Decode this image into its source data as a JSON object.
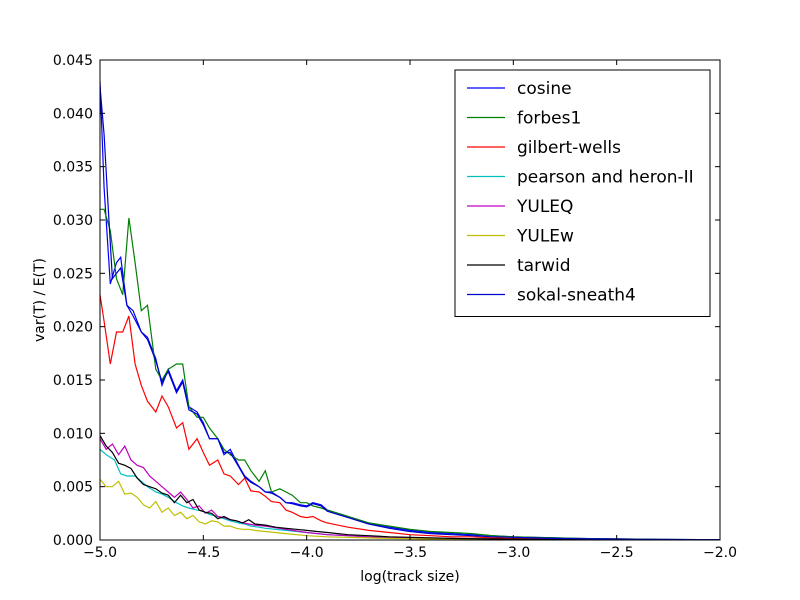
{
  "chart_data": {
    "type": "line",
    "title": "",
    "xlabel": "log(track size)",
    "ylabel": "var(T) / E(T)",
    "xlim": [
      -5.0,
      -2.0
    ],
    "ylim": [
      0.0,
      0.045
    ],
    "xticks": [
      -5.0,
      -4.5,
      -4.0,
      -3.5,
      -3.0,
      -2.5,
      -2.0
    ],
    "xtick_labels": [
      "−5.0",
      "−4.5",
      "−4.0",
      "−3.5",
      "−3.0",
      "−2.5",
      "−2.0"
    ],
    "yticks": [
      0.0,
      0.005,
      0.01,
      0.015,
      0.02,
      0.025,
      0.03,
      0.035,
      0.04,
      0.045
    ],
    "ytick_labels": [
      "0.000",
      "0.005",
      "0.010",
      "0.015",
      "0.020",
      "0.025",
      "0.030",
      "0.035",
      "0.040",
      "0.045"
    ],
    "grid": false,
    "legend_position": "top-right",
    "series": [
      {
        "name": "cosine",
        "color": "#0000ff",
        "x": [
          -5.0,
          -4.98,
          -4.95,
          -4.92,
          -4.9,
          -4.87,
          -4.84,
          -4.8,
          -4.77,
          -4.73,
          -4.7,
          -4.67,
          -4.63,
          -4.6,
          -4.57,
          -4.53,
          -4.5,
          -4.47,
          -4.43,
          -4.4,
          -4.37,
          -4.33,
          -4.3,
          -4.27,
          -4.23,
          -4.2,
          -4.17,
          -4.13,
          -4.1,
          -4.07,
          -4.03,
          -4.0,
          -3.97,
          -3.93,
          -3.9,
          -3.8,
          -3.7,
          -3.6,
          -3.5,
          -3.4,
          -3.3,
          -3.2,
          -3.1,
          -3.0,
          -2.9,
          -2.8,
          -2.7,
          -2.6,
          -2.5,
          -2.4,
          -2.3,
          -2.2,
          -2.1,
          -2.0
        ],
        "y": [
          0.043,
          0.033,
          0.024,
          0.026,
          0.0265,
          0.022,
          0.021,
          0.0195,
          0.019,
          0.017,
          0.0145,
          0.016,
          0.014,
          0.015,
          0.0125,
          0.012,
          0.011,
          0.0095,
          0.0095,
          0.008,
          0.0085,
          0.007,
          0.006,
          0.0055,
          0.005,
          0.0045,
          0.0045,
          0.004,
          0.0035,
          0.0035,
          0.0033,
          0.0032,
          0.0035,
          0.0033,
          0.0028,
          0.0022,
          0.0016,
          0.0012,
          0.0009,
          0.0007,
          0.0006,
          0.0005,
          0.0004,
          0.0003,
          0.00025,
          0.0002,
          0.00015,
          0.00012,
          0.0001,
          8e-05,
          6e-05,
          5e-05,
          4e-05,
          3e-05
        ]
      },
      {
        "name": "forbes1",
        "color": "#008000",
        "x": [
          -5.0,
          -4.98,
          -4.95,
          -4.92,
          -4.89,
          -4.86,
          -4.83,
          -4.8,
          -4.77,
          -4.73,
          -4.7,
          -4.67,
          -4.63,
          -4.6,
          -4.57,
          -4.53,
          -4.5,
          -4.47,
          -4.43,
          -4.4,
          -4.37,
          -4.33,
          -4.3,
          -4.27,
          -4.23,
          -4.2,
          -4.17,
          -4.13,
          -4.1,
          -4.07,
          -4.03,
          -4.0,
          -3.97,
          -3.93,
          -3.9,
          -3.8,
          -3.7,
          -3.6,
          -3.5,
          -3.4,
          -3.3,
          -3.2,
          -3.1,
          -3.0,
          -2.9,
          -2.8,
          -2.7,
          -2.6,
          -2.5,
          -2.4,
          -2.3,
          -2.2,
          -2.1,
          -2.0
        ],
        "y": [
          0.031,
          0.031,
          0.029,
          0.0245,
          0.023,
          0.0302,
          0.026,
          0.0215,
          0.022,
          0.016,
          0.015,
          0.016,
          0.0165,
          0.0165,
          0.0125,
          0.0115,
          0.0115,
          0.0105,
          0.0095,
          0.0085,
          0.008,
          0.0075,
          0.0075,
          0.0065,
          0.0055,
          0.0065,
          0.0045,
          0.0048,
          0.0045,
          0.0042,
          0.0035,
          0.0035,
          0.0032,
          0.003,
          0.0028,
          0.0022,
          0.0016,
          0.0013,
          0.001,
          0.0008,
          0.0007,
          0.0006,
          0.0004,
          0.0003,
          0.00025,
          0.0002,
          0.00015,
          0.00012,
          0.0001,
          8e-05,
          6e-05,
          5e-05,
          4e-05,
          3e-05
        ]
      },
      {
        "name": "gilbert-wells",
        "color": "#ff0000",
        "x": [
          -5.0,
          -4.98,
          -4.95,
          -4.92,
          -4.89,
          -4.86,
          -4.83,
          -4.8,
          -4.77,
          -4.73,
          -4.7,
          -4.67,
          -4.63,
          -4.6,
          -4.57,
          -4.53,
          -4.5,
          -4.47,
          -4.43,
          -4.4,
          -4.37,
          -4.33,
          -4.3,
          -4.27,
          -4.23,
          -4.2,
          -4.17,
          -4.13,
          -4.1,
          -4.07,
          -4.03,
          -4.0,
          -3.97,
          -3.93,
          -3.9,
          -3.8,
          -3.7,
          -3.6,
          -3.5,
          -3.4,
          -3.3,
          -3.2,
          -3.1,
          -3.0,
          -2.9,
          -2.8,
          -2.7,
          -2.6,
          -2.5,
          -2.4,
          -2.3,
          -2.2,
          -2.1,
          -2.0
        ],
        "y": [
          0.023,
          0.0205,
          0.0165,
          0.0195,
          0.0195,
          0.021,
          0.0165,
          0.0145,
          0.013,
          0.012,
          0.0135,
          0.0125,
          0.0105,
          0.011,
          0.0085,
          0.0095,
          0.0082,
          0.007,
          0.0075,
          0.0062,
          0.006,
          0.0052,
          0.0058,
          0.0046,
          0.0045,
          0.0041,
          0.0036,
          0.0035,
          0.0028,
          0.0026,
          0.0022,
          0.0021,
          0.0022,
          0.0018,
          0.0016,
          0.0012,
          0.0009,
          0.0007,
          0.0005,
          0.0004,
          0.0003,
          0.0003,
          0.0002,
          0.00015,
          0.00012,
          0.0001,
          8e-05,
          6e-05,
          5e-05,
          4e-05,
          3e-05,
          2e-05,
          2e-05,
          1e-05
        ]
      },
      {
        "name": "pearson and heron-II",
        "color": "#00bfbf",
        "x": [
          -5.0,
          -4.97,
          -4.93,
          -4.9,
          -4.87,
          -4.83,
          -4.8,
          -4.77,
          -4.73,
          -4.7,
          -4.67,
          -4.63,
          -4.6,
          -4.57,
          -4.53,
          -4.5,
          -4.47,
          -4.43,
          -4.4,
          -4.37,
          -4.33,
          -4.3,
          -4.27,
          -4.23,
          -4.2,
          -4.1,
          -4.0,
          -3.9,
          -3.8,
          -3.7,
          -3.6,
          -3.5,
          -3.4,
          -3.3,
          -3.2,
          -3.1,
          -3.0,
          -2.9,
          -2.8,
          -2.7,
          -2.6,
          -2.5,
          -2.4,
          -2.3,
          -2.2,
          -2.1,
          -2.0
        ],
        "y": [
          0.0085,
          0.008,
          0.0075,
          0.0062,
          0.006,
          0.006,
          0.0055,
          0.005,
          0.0045,
          0.0043,
          0.004,
          0.0035,
          0.0032,
          0.003,
          0.0028,
          0.0027,
          0.0024,
          0.0022,
          0.002,
          0.0018,
          0.0016,
          0.0015,
          0.0013,
          0.0012,
          0.0011,
          0.0009,
          0.0007,
          0.0005,
          0.0004,
          0.0003,
          0.00025,
          0.0002,
          0.00015,
          0.00012,
          0.0001,
          8e-05,
          6e-05,
          5e-05,
          4e-05,
          3e-05,
          3e-05,
          2e-05,
          2e-05,
          1e-05,
          1e-05,
          1e-05,
          1e-05
        ]
      },
      {
        "name": "YULEQ",
        "color": "#bf00bf",
        "x": [
          -5.0,
          -4.97,
          -4.94,
          -4.91,
          -4.88,
          -4.85,
          -4.82,
          -4.79,
          -4.76,
          -4.73,
          -4.7,
          -4.67,
          -4.64,
          -4.61,
          -4.58,
          -4.55,
          -4.52,
          -4.49,
          -4.46,
          -4.43,
          -4.4,
          -4.37,
          -4.34,
          -4.31,
          -4.28,
          -4.25,
          -4.2,
          -4.1,
          -4.0,
          -3.9,
          -3.8,
          -3.7,
          -3.6,
          -3.5,
          -3.4,
          -3.3,
          -3.2,
          -3.1,
          -3.0,
          -2.9,
          -2.8,
          -2.7,
          -2.6,
          -2.5,
          -2.4,
          -2.3,
          -2.2,
          -2.1,
          -2.0
        ],
        "y": [
          0.0095,
          0.0085,
          0.009,
          0.008,
          0.0088,
          0.0075,
          0.007,
          0.0068,
          0.006,
          0.0055,
          0.005,
          0.0045,
          0.004,
          0.0045,
          0.0038,
          0.003,
          0.0032,
          0.0025,
          0.0028,
          0.0022,
          0.0021,
          0.0019,
          0.0018,
          0.0016,
          0.0015,
          0.0014,
          0.0013,
          0.001,
          0.0007,
          0.0005,
          0.0004,
          0.0003,
          0.00025,
          0.0002,
          0.00015,
          0.00012,
          0.0001,
          8e-05,
          6e-05,
          5e-05,
          4e-05,
          3e-05,
          3e-05,
          2e-05,
          2e-05,
          1e-05,
          1e-05,
          1e-05,
          1e-05
        ]
      },
      {
        "name": "YULEw",
        "color": "#bfbf00",
        "x": [
          -5.0,
          -4.97,
          -4.94,
          -4.91,
          -4.88,
          -4.85,
          -4.82,
          -4.79,
          -4.76,
          -4.73,
          -4.7,
          -4.67,
          -4.64,
          -4.61,
          -4.58,
          -4.55,
          -4.52,
          -4.49,
          -4.46,
          -4.43,
          -4.4,
          -4.37,
          -4.34,
          -4.31,
          -4.28,
          -4.25,
          -4.2,
          -4.1,
          -4.0,
          -3.9,
          -3.8,
          -3.7,
          -3.6,
          -3.5,
          -3.4,
          -3.3,
          -3.2,
          -3.1,
          -3.0,
          -2.9,
          -2.8,
          -2.7,
          -2.6,
          -2.5,
          -2.4,
          -2.3,
          -2.2,
          -2.1,
          -2.0
        ],
        "y": [
          0.0057,
          0.005,
          0.005,
          0.0055,
          0.0043,
          0.0044,
          0.004,
          0.0033,
          0.003,
          0.0036,
          0.0026,
          0.003,
          0.0023,
          0.0026,
          0.002,
          0.0023,
          0.0017,
          0.0015,
          0.0018,
          0.0017,
          0.0013,
          0.0013,
          0.0011,
          0.001,
          0.001,
          0.0009,
          0.0008,
          0.0006,
          0.0004,
          0.0003,
          0.00025,
          0.0002,
          0.00015,
          0.00012,
          0.0001,
          8e-05,
          6e-05,
          5e-05,
          4e-05,
          3e-05,
          2e-05,
          2e-05,
          1e-05,
          1e-05,
          1e-05,
          1e-05,
          1e-05,
          0.0,
          0.0
        ]
      },
      {
        "name": "tarwid",
        "color": "#000000",
        "x": [
          -5.0,
          -4.97,
          -4.94,
          -4.91,
          -4.88,
          -4.85,
          -4.82,
          -4.79,
          -4.76,
          -4.73,
          -4.7,
          -4.67,
          -4.64,
          -4.61,
          -4.58,
          -4.55,
          -4.52,
          -4.49,
          -4.46,
          -4.43,
          -4.4,
          -4.37,
          -4.34,
          -4.31,
          -4.28,
          -4.25,
          -4.2,
          -4.15,
          -4.1,
          -4.05,
          -4.0,
          -3.95,
          -3.9,
          -3.8,
          -3.7,
          -3.6,
          -3.5,
          -3.4,
          -3.3,
          -3.2,
          -3.1,
          -3.0,
          -2.9,
          -2.8,
          -2.7,
          -2.6,
          -2.5,
          -2.4,
          -2.3,
          -2.2,
          -2.1,
          -2.0
        ],
        "y": [
          0.0098,
          0.0088,
          0.0082,
          0.0072,
          0.007,
          0.0067,
          0.0058,
          0.0052,
          0.005,
          0.0048,
          0.0044,
          0.0042,
          0.0035,
          0.0042,
          0.0035,
          0.0038,
          0.0028,
          0.0026,
          0.0025,
          0.002,
          0.0022,
          0.0019,
          0.0018,
          0.0016,
          0.0019,
          0.0015,
          0.0014,
          0.0012,
          0.0011,
          0.001,
          0.0009,
          0.0008,
          0.0007,
          0.0005,
          0.0004,
          0.0003,
          0.00025,
          0.0002,
          0.00015,
          0.00012,
          0.0001,
          8e-05,
          6e-05,
          5e-05,
          4e-05,
          3e-05,
          3e-05,
          2e-05,
          2e-05,
          1e-05,
          1e-05,
          1e-05
        ]
      },
      {
        "name": "sokal-sneath4",
        "color": "#0000cc",
        "x": [
          -5.0,
          -4.98,
          -4.96,
          -4.94,
          -4.92,
          -4.9,
          -4.87,
          -4.84,
          -4.8,
          -4.77,
          -4.73,
          -4.7,
          -4.67,
          -4.63,
          -4.6,
          -4.57,
          -4.53,
          -4.5,
          -4.47,
          -4.43,
          -4.4,
          -4.37,
          -4.33,
          -4.3,
          -4.27,
          -4.23,
          -4.2,
          -4.17,
          -4.13,
          -4.1,
          -4.07,
          -4.03,
          -4.0,
          -3.97,
          -3.93,
          -3.9,
          -3.8,
          -3.7,
          -3.6,
          -3.5,
          -3.4,
          -3.3,
          -3.2,
          -3.1,
          -3.0,
          -2.9,
          -2.8,
          -2.7,
          -2.6,
          -2.5,
          -2.4,
          -2.3,
          -2.2,
          -2.1,
          -2.0
        ],
        "y": [
          0.0425,
          0.038,
          0.031,
          0.0245,
          0.025,
          0.0255,
          0.022,
          0.0215,
          0.0195,
          0.0188,
          0.0168,
          0.0148,
          0.0158,
          0.0138,
          0.0148,
          0.0122,
          0.0118,
          0.0108,
          0.0095,
          0.0095,
          0.0082,
          0.0082,
          0.0069,
          0.0059,
          0.0054,
          0.005,
          0.0045,
          0.0044,
          0.004,
          0.0035,
          0.0034,
          0.0032,
          0.0031,
          0.0034,
          0.0032,
          0.0027,
          0.0021,
          0.0015,
          0.0011,
          0.0008,
          0.0006,
          0.0005,
          0.0004,
          0.0003,
          0.00025,
          0.0002,
          0.00015,
          0.00012,
          0.0001,
          8e-05,
          6e-05,
          5e-05,
          4e-05,
          3e-05,
          3e-05
        ]
      }
    ]
  }
}
